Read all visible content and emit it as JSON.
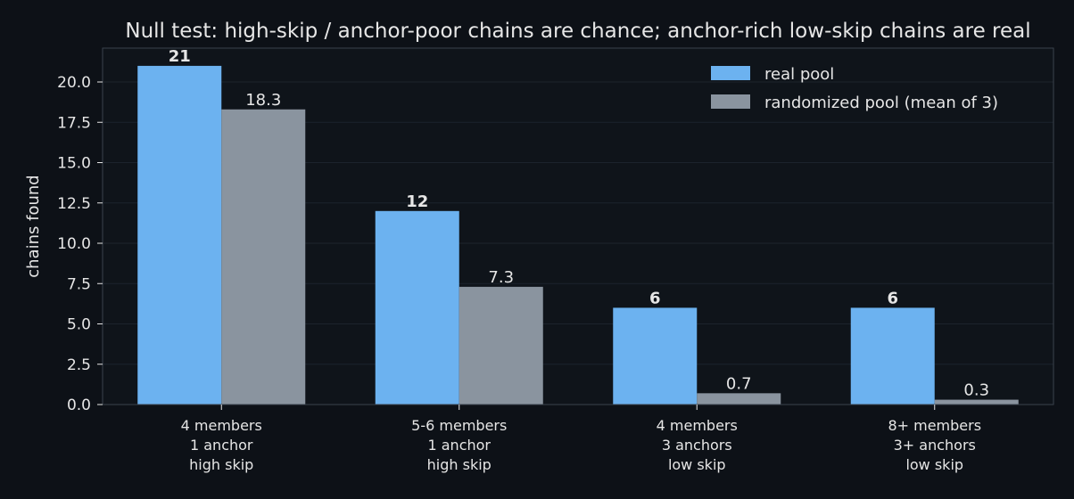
{
  "chart_data": {
    "type": "bar",
    "title": "Null test: high-skip / anchor-poor chains are chance; anchor-rich low-skip chains are real",
    "ylabel": "chains found",
    "xlabel": "",
    "ylim": [
      0,
      22
    ],
    "yticks": [
      "0.0",
      "2.5",
      "5.0",
      "7.5",
      "10.0",
      "12.5",
      "15.0",
      "17.5",
      "20.0"
    ],
    "ytick_values": [
      0,
      2.5,
      5,
      7.5,
      10,
      12.5,
      15,
      17.5,
      20
    ],
    "grid": "horizontal",
    "legend_position": "top-right",
    "categories": [
      [
        "4 members",
        "1 anchor",
        "high skip"
      ],
      [
        "5-6 members",
        "1 anchor",
        "high skip"
      ],
      [
        "4 members",
        "3 anchors",
        "low skip"
      ],
      [
        "8+ members",
        "3+ anchors",
        "low skip"
      ]
    ],
    "series": [
      {
        "name": "real pool",
        "color": "#6cb2f0",
        "values": [
          21,
          12,
          6,
          6
        ],
        "labels": [
          "21",
          "12",
          "6",
          "6"
        ]
      },
      {
        "name": "randomized pool (mean of 3)",
        "color": "#8a949f",
        "values": [
          18.3,
          7.3,
          0.7,
          0.3
        ],
        "labels": [
          "18.3",
          "7.3",
          "0.7",
          "0.3"
        ]
      }
    ]
  },
  "colors": {
    "background": "#0d1117",
    "plot_background": "#0f141a",
    "grid": "#1c232c",
    "axes": "#3a424c",
    "text": "#e6e6e6"
  }
}
